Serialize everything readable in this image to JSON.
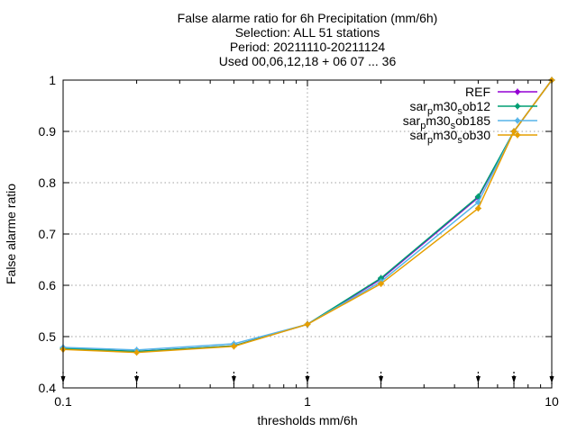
{
  "chart_data": {
    "type": "line",
    "title_lines": [
      "False alarme ratio  for 6h Precipitation (mm/6h)",
      "Selection: ALL     51 stations",
      "Period: 20211110-20211124",
      "Used 00,06,12,18 + 06 07 ... 36"
    ],
    "xlabel": "thresholds mm/6h",
    "ylabel": "False alarme ratio",
    "xscale": "log",
    "xlim": [
      0.1,
      10
    ],
    "ylim": [
      0.4,
      1.0
    ],
    "x_ticks": [
      "0.1",
      "1",
      "10"
    ],
    "y_ticks": [
      "0.4",
      "0.5",
      "0.6",
      "0.7",
      "0.8",
      "0.9",
      "1"
    ],
    "grid": true,
    "legend_position": "top-right",
    "x": [
      0.1,
      0.2,
      0.5,
      1,
      2,
      5,
      7,
      10
    ],
    "series": [
      {
        "name": "REF",
        "name_parts": {
          "pre": "REF",
          "sub": "",
          "mid": "",
          "sub2": "",
          "post": ""
        },
        "color": "#9400d3",
        "values": [
          0.477,
          0.471,
          0.482,
          0.524,
          0.612,
          0.771,
          0.9,
          1.0
        ]
      },
      {
        "name": "sar_pm30_sob12",
        "name_parts": {
          "pre": "sar",
          "sub": "p",
          "mid": "m30",
          "sub2": "s",
          "post": "ob12"
        },
        "color": "#009e73",
        "values": [
          0.477,
          0.471,
          0.482,
          0.524,
          0.614,
          0.773,
          0.9,
          1.0
        ]
      },
      {
        "name": "sar_pm30_sob185",
        "name_parts": {
          "pre": "sar",
          "sub": "p",
          "mid": "m30",
          "sub2": "s",
          "post": "ob185"
        },
        "color": "#56b4e9",
        "values": [
          0.479,
          0.474,
          0.486,
          0.524,
          0.607,
          0.762,
          0.9,
          1.0
        ]
      },
      {
        "name": "sar_pm30_sob30",
        "name_parts": {
          "pre": "sar",
          "sub": "p",
          "mid": "m30",
          "sub2": "s",
          "post": "ob30"
        },
        "color": "#e69f00",
        "values": [
          0.475,
          0.469,
          0.481,
          0.524,
          0.603,
          0.75,
          0.9,
          1.0
        ]
      }
    ]
  }
}
